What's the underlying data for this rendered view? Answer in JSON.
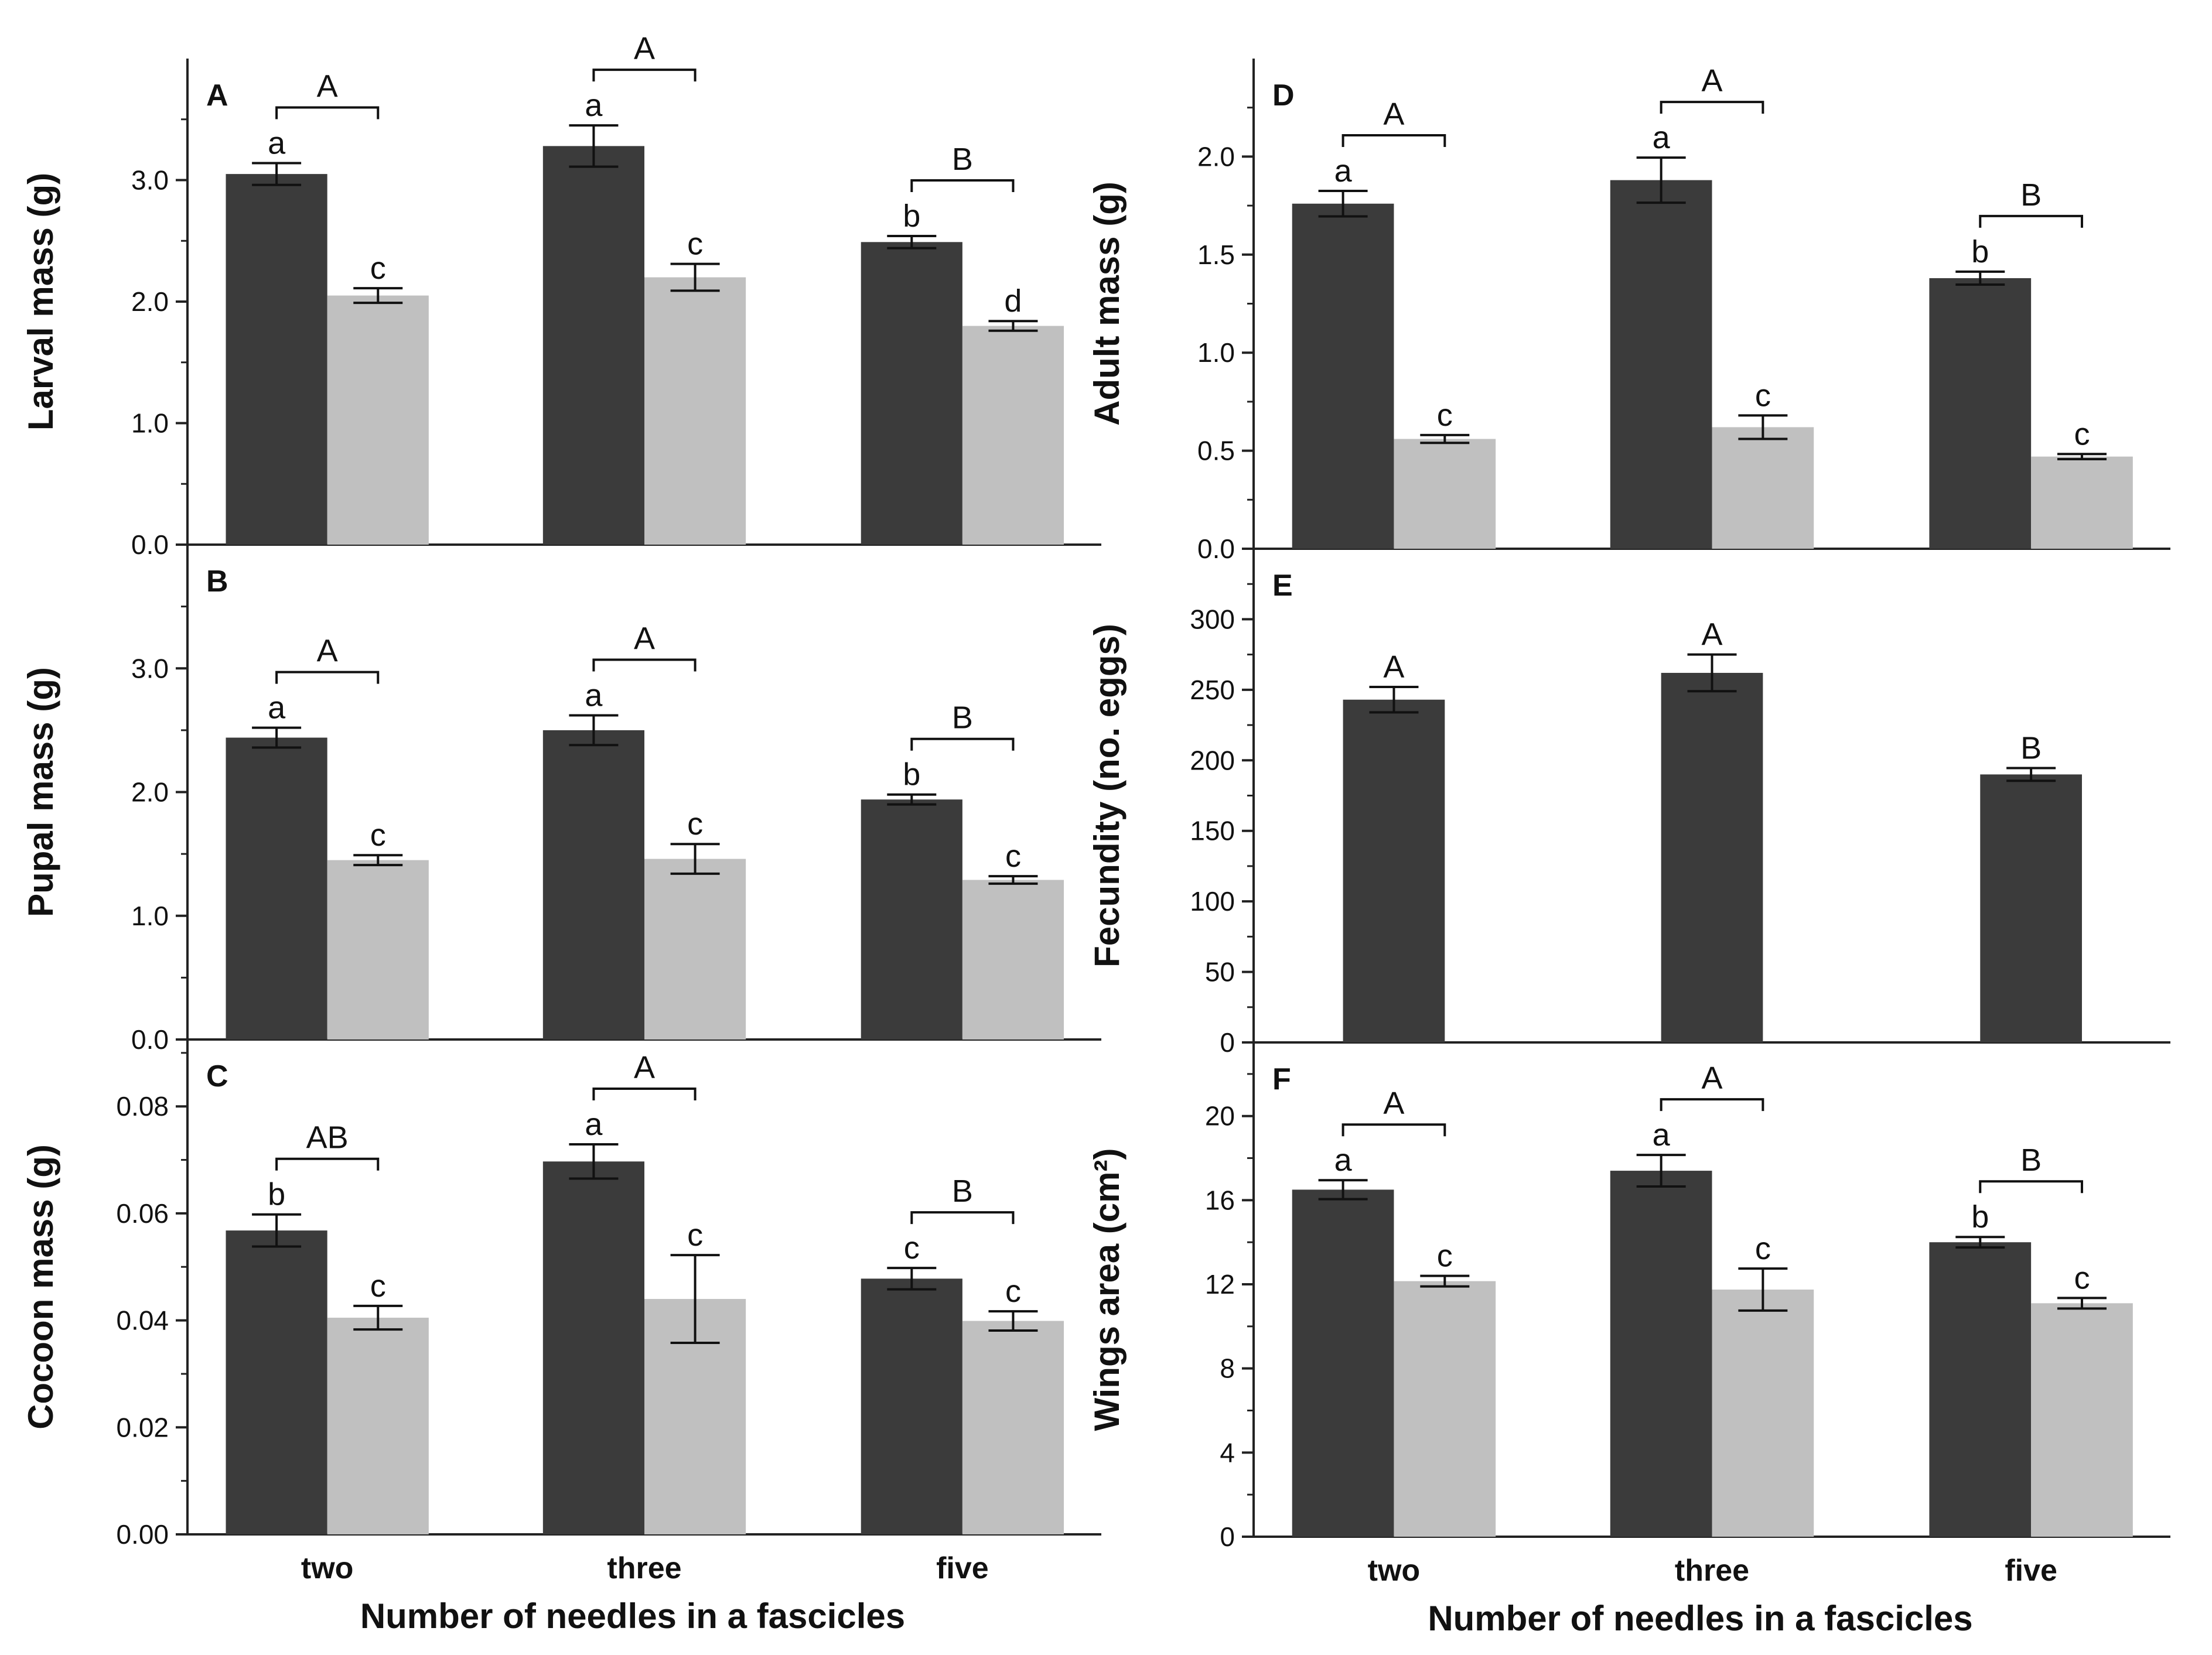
{
  "chart_data": [
    {
      "id": "A",
      "type": "bar",
      "panel_label": "A",
      "ylabel": "Larval mass (g)",
      "xlabel": "",
      "categories": [
        "two",
        "three",
        "five"
      ],
      "ylim": [
        0,
        4.0
      ],
      "yticks": [
        0,
        1,
        2,
        3
      ],
      "ytick_labels": [
        "0.0",
        "1.0",
        "2.0",
        "3.0"
      ],
      "series": [
        {
          "name": "dark",
          "color": "#3b3b3b",
          "values": [
            3.05,
            3.28,
            2.49
          ],
          "errors": [
            0.09,
            0.17,
            0.05
          ],
          "letters": [
            "a",
            "a",
            "b"
          ]
        },
        {
          "name": "light",
          "color": "#c0c0c0",
          "values": [
            2.05,
            2.2,
            1.8
          ],
          "errors": [
            0.06,
            0.11,
            0.04
          ],
          "letters": [
            "c",
            "c",
            "d"
          ]
        }
      ],
      "brackets": [
        "A",
        "A",
        "B"
      ]
    },
    {
      "id": "B",
      "type": "bar",
      "panel_label": "B",
      "ylabel": "Pupal mass (g)",
      "xlabel": "",
      "categories": [
        "two",
        "three",
        "five"
      ],
      "ylim": [
        0,
        4.0
      ],
      "yticks": [
        0,
        1,
        2,
        3
      ],
      "ytick_labels": [
        "0.0",
        "1.0",
        "2.0",
        "3.0"
      ],
      "series": [
        {
          "name": "dark",
          "color": "#3b3b3b",
          "values": [
            2.44,
            2.5,
            1.94
          ],
          "errors": [
            0.08,
            0.12,
            0.04
          ],
          "letters": [
            "a",
            "a",
            "b"
          ]
        },
        {
          "name": "light",
          "color": "#c0c0c0",
          "values": [
            1.45,
            1.46,
            1.29
          ],
          "errors": [
            0.04,
            0.12,
            0.03
          ],
          "letters": [
            "c",
            "c",
            "c"
          ]
        }
      ],
      "brackets": [
        "A",
        "A",
        "B"
      ]
    },
    {
      "id": "C",
      "type": "bar",
      "panel_label": "C",
      "ylabel": "Cocoon mass (g)",
      "xlabel": "Number of needles in a fascicles",
      "categories": [
        "two",
        "three",
        "five"
      ],
      "ylim": [
        0,
        0.0925
      ],
      "yticks": [
        0,
        0.02,
        0.04,
        0.06,
        0.08
      ],
      "ytick_labels": [
        "0.00",
        "0.02",
        "0.04",
        "0.06",
        "0.08"
      ],
      "series": [
        {
          "name": "dark",
          "color": "#3b3b3b",
          "values": [
            0.0568,
            0.0697,
            0.0478
          ],
          "errors": [
            0.003,
            0.0032,
            0.002
          ],
          "letters": [
            "b",
            "a",
            "c"
          ]
        },
        {
          "name": "light",
          "color": "#c0c0c0",
          "values": [
            0.0405,
            0.044,
            0.0399
          ],
          "errors": [
            0.0022,
            0.0082,
            0.0018
          ],
          "letters": [
            "c",
            "c",
            "c"
          ]
        }
      ],
      "brackets": [
        "AB",
        "A",
        "B"
      ]
    },
    {
      "id": "D",
      "type": "bar",
      "panel_label": "D",
      "ylabel": "Adult mass (g)",
      "xlabel": "",
      "categories": [
        "two",
        "three",
        "five"
      ],
      "ylim": [
        0,
        2.5
      ],
      "yticks": [
        0,
        0.5,
        1.0,
        1.5,
        2.0
      ],
      "ytick_labels": [
        "0.0",
        "0.5",
        "1.0",
        "1.5",
        "2.0"
      ],
      "series": [
        {
          "name": "dark",
          "color": "#3b3b3b",
          "values": [
            1.76,
            1.88,
            1.38
          ],
          "errors": [
            0.065,
            0.115,
            0.033
          ],
          "letters": [
            "a",
            "a",
            "b"
          ]
        },
        {
          "name": "light",
          "color": "#c0c0c0",
          "values": [
            0.56,
            0.62,
            0.47
          ],
          "errors": [
            0.02,
            0.06,
            0.013
          ],
          "letters": [
            "c",
            "c",
            "c"
          ]
        }
      ],
      "brackets": [
        "A",
        "A",
        "B"
      ]
    },
    {
      "id": "E",
      "type": "bar",
      "panel_label": "E",
      "ylabel": "Fecundity (no. eggs)",
      "xlabel": "",
      "categories": [
        "two",
        "three",
        "five"
      ],
      "ylim": [
        0,
        350
      ],
      "yticks": [
        0,
        50,
        100,
        150,
        200,
        250,
        300
      ],
      "ytick_labels": [
        "0",
        "50",
        "100",
        "150",
        "200",
        "250",
        "300"
      ],
      "series": [
        {
          "name": "dark",
          "color": "#3b3b3b",
          "values": [
            243,
            262,
            190
          ],
          "errors": [
            9,
            13,
            4.5
          ],
          "letters": [
            "A",
            "A",
            "B"
          ]
        }
      ],
      "brackets": []
    },
    {
      "id": "F",
      "type": "bar",
      "panel_label": "F",
      "ylabel": "Wings area (cm²)",
      "xlabel": "Number of needles in a fascicles",
      "categories": [
        "two",
        "three",
        "five"
      ],
      "ylim": [
        0,
        23.5
      ],
      "yticks": [
        0,
        4,
        8,
        12,
        16,
        20
      ],
      "ytick_labels": [
        "0",
        "4",
        "8",
        "12",
        "16",
        "20"
      ],
      "series": [
        {
          "name": "dark",
          "color": "#3b3b3b",
          "values": [
            16.5,
            17.4,
            14.0
          ],
          "errors": [
            0.45,
            0.75,
            0.25
          ],
          "letters": [
            "a",
            "a",
            "b"
          ]
        },
        {
          "name": "light",
          "color": "#c0c0c0",
          "values": [
            12.15,
            11.75,
            11.1
          ],
          "errors": [
            0.25,
            1.0,
            0.25
          ],
          "letters": [
            "c",
            "c",
            "c"
          ]
        }
      ],
      "brackets": [
        "A",
        "A",
        "B"
      ]
    }
  ]
}
